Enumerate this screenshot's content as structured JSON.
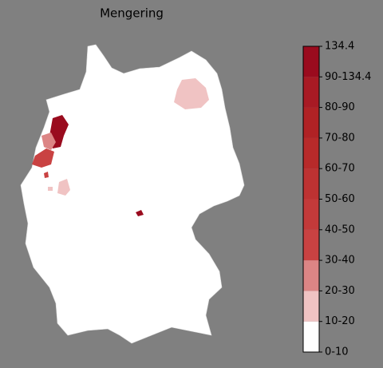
{
  "title": "Mengering",
  "legend": {
    "labels": [
      "0-10",
      "10-20",
      "20-30",
      "30-40",
      "40-50",
      "50-60",
      "60-70",
      "70-80",
      "80-90",
      "90-134.4",
      "134.4"
    ],
    "colors": [
      "#ffffff",
      "#f0c3c3",
      "#dc8585",
      "#c94242",
      "#c33a3a",
      "#bd3232",
      "#b72a2a",
      "#b02225",
      "#a81a24",
      "#9a0b1e"
    ]
  }
}
